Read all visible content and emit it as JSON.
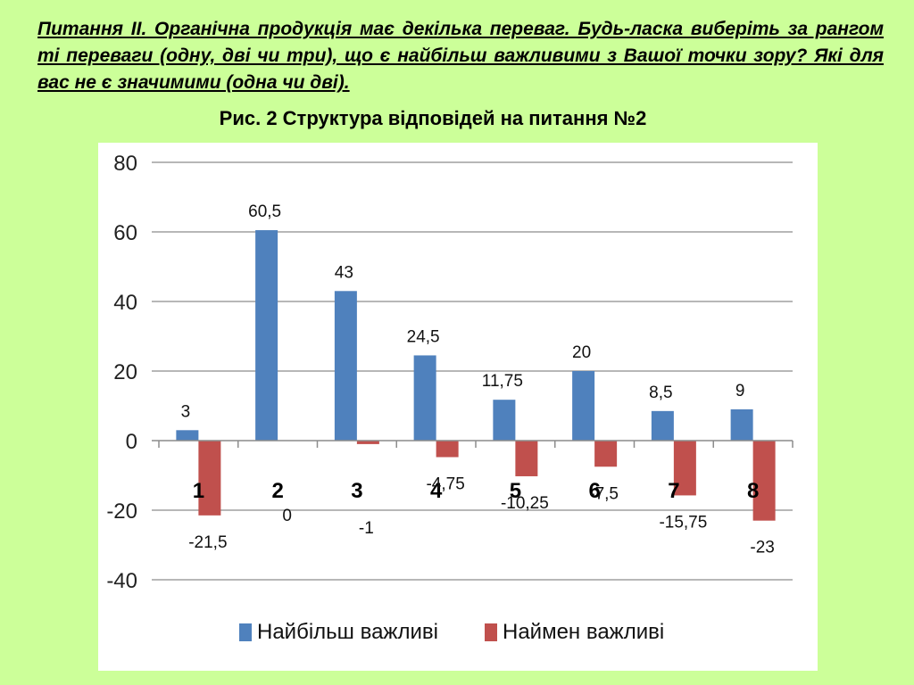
{
  "question": "Питання ІІ. Органічна продукція має декілька переваг. Будь-ласка виберіть за рангом ті переваги (одну, дві чи три), що є найбільш важливими з Вашої точки зору? Які для вас не є значимими (одна чи дві).",
  "figure_title": "Рис. 2 Структура відповідей на питання №2",
  "chart_data": {
    "type": "bar",
    "title": "",
    "xlabel": "",
    "ylabel": "",
    "categories": [
      "1",
      "2",
      "3",
      "4",
      "5",
      "6",
      "7",
      "8"
    ],
    "series": [
      {
        "name": "Найбільш важливі",
        "color": "#4f81bd",
        "values": [
          3,
          60.5,
          43,
          24.5,
          11.75,
          20,
          8.5,
          9
        ],
        "labels": [
          "3",
          "60,5",
          "43",
          "24,5",
          "11,75",
          "20",
          "8,5",
          "9"
        ]
      },
      {
        "name": "Наймен важливі",
        "color": "#c0504d",
        "values": [
          -21.5,
          0,
          -1,
          -4.75,
          -10.25,
          -7.5,
          -15.75,
          -23
        ],
        "labels": [
          "-21,5",
          "0",
          "-1",
          "-4,75",
          "-10,25",
          "-7,5",
          "-15,75",
          "-23"
        ]
      }
    ],
    "ylim": [
      -40,
      80
    ],
    "yticks": [
      80,
      60,
      40,
      20,
      0,
      -20,
      -40
    ],
    "grid": true,
    "legend_position": "bottom"
  }
}
